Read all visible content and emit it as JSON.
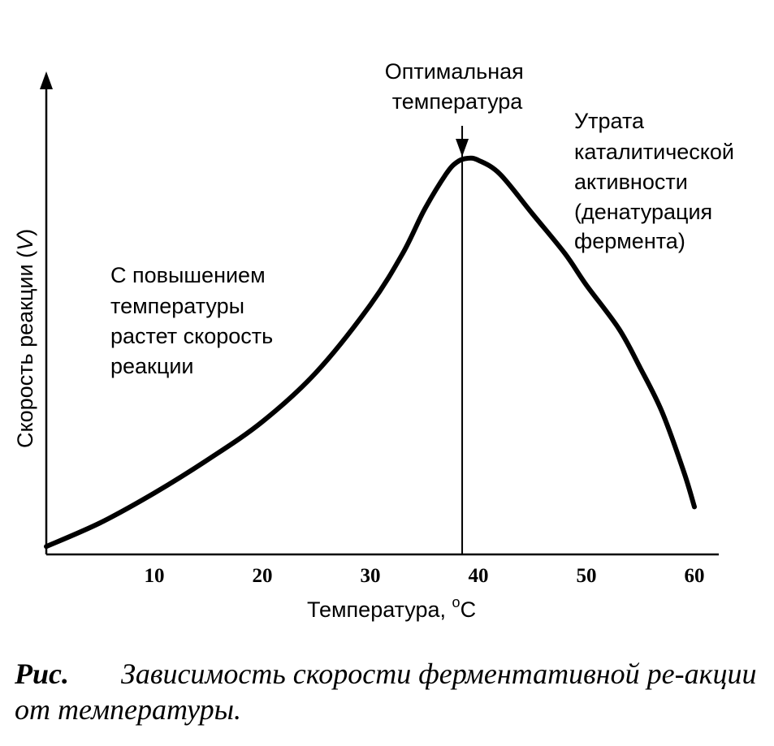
{
  "chart_data": {
    "type": "line",
    "xlabel": "Температура, °C",
    "ylabel": "Скорость реакции (V)",
    "ylabel_pre": "Скорость реакции (",
    "ylabel_var": "V",
    "ylabel_post": ")",
    "xlabel_main": "Температура, ",
    "xlabel_sup": "o",
    "xlabel_unit": "C",
    "xlim": [
      0,
      62
    ],
    "ylim": [
      0,
      1
    ],
    "xticks": [
      "10",
      "20",
      "30",
      "40",
      "50",
      "60"
    ],
    "xtick_values": [
      10,
      20,
      30,
      40,
      50,
      60
    ],
    "grid": false,
    "series": [
      {
        "x": [
          0,
          5,
          10,
          15,
          20,
          25,
          30,
          33,
          35,
          37,
          38,
          39,
          40,
          42,
          45,
          48,
          50,
          53,
          55,
          57,
          59,
          60
        ],
        "y": [
          0.02,
          0.08,
          0.155,
          0.24,
          0.335,
          0.46,
          0.63,
          0.76,
          0.87,
          0.96,
          0.99,
          1.0,
          0.995,
          0.96,
          0.86,
          0.76,
          0.68,
          0.57,
          0.47,
          0.36,
          0.21,
          0.12
        ]
      }
    ],
    "optimum_x": 38.5,
    "annotations": {
      "optimum": [
        "Оптимальная",
        "температура"
      ],
      "rising": [
        "С повышением",
        "температуры",
        "растет скорость",
        "реакции"
      ],
      "falling": [
        "Утрата",
        "каталитической",
        "активности",
        "(денатурация",
        "фермента)"
      ]
    }
  },
  "caption": {
    "label": "Рис.",
    "text": "Зависимость скорости ферментативной ре-акции от температуры."
  }
}
